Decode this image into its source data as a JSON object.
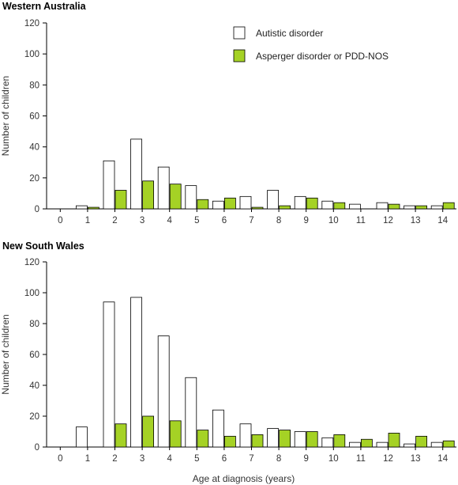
{
  "chart_data": [
    {
      "type": "bar",
      "title": "Western Australia",
      "xlabel": "",
      "ylabel": "Number of children",
      "ylim": [
        0,
        120
      ],
      "yticks": [
        0,
        20,
        40,
        60,
        80,
        100,
        120
      ],
      "categories": [
        "0",
        "1",
        "2",
        "3",
        "4",
        "5",
        "6",
        "7",
        "8",
        "9",
        "10",
        "11",
        "12",
        "13",
        "14"
      ],
      "series": [
        {
          "name": "Autistic disorder",
          "color": "#ffffff",
          "values": [
            0,
            2,
            31,
            45,
            27,
            15,
            5,
            8,
            12,
            8,
            5,
            3,
            4,
            2,
            2
          ]
        },
        {
          "name": "Asperger disorder or PDD-NOS",
          "color": "#a5d225",
          "values": [
            0,
            1,
            12,
            18,
            16,
            6,
            7,
            1,
            2,
            7,
            4,
            0,
            3,
            2,
            4
          ]
        }
      ],
      "legend": {
        "position": "top-center"
      },
      "grid": false
    },
    {
      "type": "bar",
      "title": "New South Wales",
      "xlabel": "Age at diagnosis (years)",
      "ylabel": "Number of children",
      "ylim": [
        0,
        120
      ],
      "yticks": [
        0,
        20,
        40,
        60,
        80,
        100,
        120
      ],
      "categories": [
        "0",
        "1",
        "2",
        "3",
        "4",
        "5",
        "6",
        "7",
        "8",
        "9",
        "10",
        "11",
        "12",
        "13",
        "14"
      ],
      "series": [
        {
          "name": "Autistic disorder",
          "color": "#ffffff",
          "values": [
            0,
            13,
            94,
            97,
            72,
            45,
            24,
            15,
            12,
            10,
            6,
            3,
            3,
            2,
            3
          ]
        },
        {
          "name": "Asperger disorder or PDD-NOS",
          "color": "#a5d225",
          "values": [
            0,
            0,
            15,
            20,
            17,
            11,
            7,
            8,
            11,
            10,
            8,
            5,
            9,
            7,
            4
          ]
        }
      ],
      "grid": false
    }
  ]
}
